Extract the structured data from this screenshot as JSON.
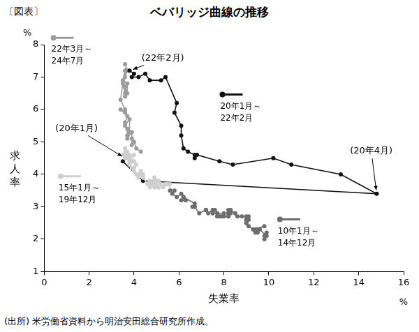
{
  "chart_data": {
    "type": "line",
    "figure_label": "〔図表〕",
    "title": "ベバリッジ曲線の推移",
    "xlabel": "失業率",
    "ylabel": "求人率",
    "x_unit": "%",
    "y_unit": "%",
    "source": "(出所) 米労働省資料から明治安田総合研究所作成。",
    "xlim": [
      0,
      16
    ],
    "xticks": [
      0,
      2,
      4,
      6,
      8,
      10,
      12,
      14,
      16
    ],
    "ylim": [
      1,
      8
    ],
    "yticks": [
      1,
      2,
      3,
      4,
      5,
      6,
      7,
      8
    ],
    "grid": false,
    "marker": "circle",
    "line_style": "solid",
    "series": [
      {
        "name": "10年1月～14年12月",
        "color": "#6d6d6d",
        "x": [
          9.8,
          9.8,
          9.9,
          9.9,
          9.6,
          9.4,
          9.4,
          9.5,
          9.5,
          9.4,
          9.8,
          9.3,
          9.1,
          9.0,
          9.0,
          9.1,
          9.0,
          9.1,
          9.0,
          9.0,
          9.0,
          8.8,
          8.6,
          8.5,
          8.3,
          8.3,
          8.2,
          8.2,
          8.2,
          8.2,
          8.2,
          8.0,
          7.8,
          7.8,
          7.7,
          7.9,
          8.0,
          7.7,
          7.5,
          7.6,
          7.5,
          7.5,
          7.3,
          7.2,
          7.2,
          7.2,
          6.9,
          6.7,
          6.6,
          6.7,
          6.7,
          6.2,
          6.3,
          6.1,
          6.2,
          6.1,
          5.9,
          5.7,
          5.8,
          5.6
        ],
        "values": [
          2.0,
          2.1,
          2.2,
          2.1,
          2.3,
          2.2,
          2.3,
          2.2,
          2.3,
          2.3,
          2.4,
          2.3,
          2.4,
          2.5,
          2.5,
          2.6,
          2.6,
          2.7,
          2.6,
          2.6,
          2.7,
          2.7,
          2.7,
          2.8,
          2.9,
          2.8,
          2.9,
          2.8,
          2.7,
          2.8,
          2.7,
          2.7,
          2.7,
          2.7,
          2.7,
          2.7,
          2.8,
          2.8,
          2.8,
          2.9,
          2.8,
          2.9,
          2.8,
          2.9,
          2.9,
          2.9,
          2.8,
          3.0,
          3.0,
          3.0,
          3.1,
          3.3,
          3.2,
          3.2,
          3.3,
          3.4,
          3.3,
          3.4,
          3.5,
          3.5
        ]
      },
      {
        "name": "15年1月～19年12月",
        "color": "#cfcfcf",
        "x": [
          5.7,
          5.5,
          5.4,
          5.4,
          5.6,
          5.3,
          5.2,
          5.1,
          5.0,
          5.0,
          5.1,
          5.0,
          4.9,
          4.9,
          5.0,
          5.1,
          4.8,
          4.9,
          4.8,
          4.9,
          5.0,
          4.9,
          4.7,
          4.7,
          4.7,
          4.6,
          4.4,
          4.4,
          4.4,
          4.3,
          4.3,
          4.4,
          4.3,
          4.2,
          4.2,
          4.1,
          4.0,
          4.1,
          4.0,
          3.9,
          3.8,
          4.0,
          3.8,
          3.8,
          3.7,
          3.8,
          3.8,
          3.9,
          4.0,
          3.8,
          3.8,
          3.6,
          3.6,
          3.7,
          3.7,
          3.7,
          3.5,
          3.6,
          3.6,
          3.6
        ],
        "values": [
          3.5,
          3.7,
          3.7,
          3.7,
          3.7,
          3.6,
          3.7,
          3.8,
          3.7,
          3.8,
          3.6,
          3.7,
          3.6,
          3.8,
          3.6,
          3.6,
          3.7,
          3.9,
          3.7,
          3.8,
          3.8,
          3.8,
          3.8,
          3.6,
          3.8,
          3.7,
          3.9,
          3.9,
          3.9,
          4.0,
          4.0,
          4.0,
          4.1,
          4.0,
          3.9,
          4.0,
          4.1,
          4.3,
          4.2,
          4.2,
          4.3,
          4.4,
          4.5,
          4.4,
          4.6,
          4.6,
          4.5,
          4.4,
          4.6,
          4.5,
          4.6,
          4.6,
          4.5,
          4.6,
          4.7,
          4.5,
          4.6,
          4.8,
          4.6,
          4.5
        ]
      },
      {
        "name": "20年1月～22年2月",
        "color": "#111111",
        "x": [
          3.6,
          3.5,
          4.4,
          14.8,
          13.2,
          11.0,
          10.2,
          8.4,
          7.8,
          6.8,
          6.7,
          6.7,
          6.4,
          6.2,
          6.1,
          6.1,
          5.8,
          5.9,
          5.4,
          5.2,
          4.7,
          4.5,
          4.2,
          3.9,
          4.0,
          3.8
        ],
        "values": [
          4.5,
          4.4,
          3.8,
          3.4,
          4.0,
          4.3,
          4.5,
          4.3,
          4.4,
          4.6,
          4.5,
          4.6,
          4.7,
          4.8,
          5.2,
          5.5,
          5.9,
          6.2,
          7.0,
          6.9,
          6.9,
          7.1,
          7.0,
          7.0,
          7.1,
          7.2
        ]
      },
      {
        "name": "22年3月～24年7月",
        "color": "#9b9b9b",
        "x": [
          3.6,
          3.7,
          3.6,
          3.6,
          3.5,
          3.7,
          3.7,
          3.6,
          3.6,
          3.6,
          3.5,
          3.4,
          3.6,
          3.6,
          3.4,
          3.7,
          3.6,
          3.6,
          3.8,
          3.8,
          3.7,
          3.7,
          3.7,
          3.9,
          3.9,
          3.9,
          4.0,
          4.1,
          4.3
        ],
        "values": [
          7.4,
          7.2,
          7.0,
          7.2,
          6.9,
          6.8,
          6.5,
          6.7,
          6.4,
          6.5,
          6.8,
          6.3,
          6.0,
          5.9,
          6.0,
          5.8,
          5.6,
          5.5,
          5.7,
          5.3,
          5.4,
          5.2,
          5.1,
          5.3,
          5.1,
          4.9,
          5.0,
          4.8,
          4.7
        ]
      }
    ],
    "annotations": [
      {
        "text": "(22年2月)",
        "x": 3.8,
        "y": 7.2
      },
      {
        "text": "(20年1月)",
        "x": 3.6,
        "y": 4.5
      },
      {
        "text": "(20年4月)",
        "x": 14.8,
        "y": 3.4
      }
    ]
  }
}
